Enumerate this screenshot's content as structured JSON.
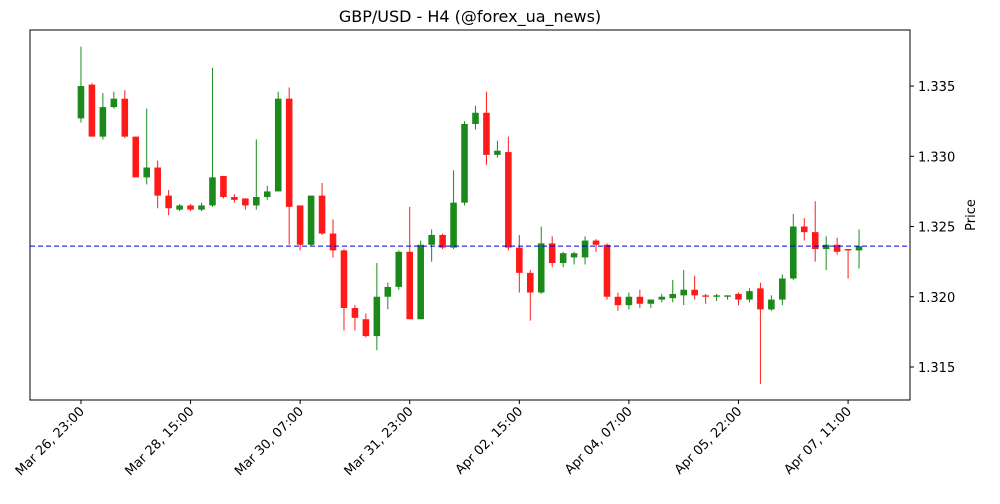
{
  "chart_data": {
    "type": "candlestick",
    "title": "GBP/USD - H4 (@forex_ua_news)",
    "y_label": "Price",
    "open": [
      1.3327,
      1.3351,
      1.3314,
      1.3335,
      1.3341,
      1.3314,
      1.3285,
      1.3292,
      1.3272,
      1.3262,
      1.3265,
      1.3262,
      1.3265,
      1.3286,
      1.3271,
      1.327,
      1.3265,
      1.3271,
      1.3275,
      1.3341,
      1.3265,
      1.3237,
      1.3272,
      1.3245,
      1.3233,
      1.3192,
      1.3184,
      1.3172,
      1.32,
      1.3207,
      1.3232,
      1.3184,
      1.3237,
      1.3244,
      1.3235,
      1.3267,
      1.3323,
      1.3331,
      1.3301,
      1.3303,
      1.3235,
      1.3217,
      1.3203,
      1.3238,
      1.3224,
      1.3228,
      1.3228,
      1.324,
      1.3237,
      1.32,
      1.3194,
      1.32,
      1.3195,
      1.3198,
      1.3199,
      1.3201,
      1.3205,
      1.3201,
      1.32,
      1.32,
      1.3202,
      1.3198,
      1.3206,
      1.3191,
      1.3198,
      1.3213,
      1.325,
      1.3246,
      1.3234,
      1.3237,
      1.3234,
      1.3233
    ],
    "high": [
      1.3378,
      1.3352,
      1.3345,
      1.3346,
      1.3347,
      1.3314,
      1.3334,
      1.3297,
      1.3276,
      1.3266,
      1.3266,
      1.3267,
      1.3363,
      1.3286,
      1.3273,
      1.327,
      1.3312,
      1.3279,
      1.3346,
      1.3349,
      1.3265,
      1.3272,
      1.3281,
      1.3255,
      1.3234,
      1.3194,
      1.3188,
      1.3224,
      1.321,
      1.3233,
      1.3264,
      1.324,
      1.3248,
      1.3245,
      1.329,
      1.3325,
      1.3336,
      1.3346,
      1.3311,
      1.3314,
      1.3244,
      1.3219,
      1.325,
      1.3243,
      1.3232,
      1.3232,
      1.3243,
      1.3241,
      1.3238,
      1.3203,
      1.3203,
      1.3205,
      1.3198,
      1.3202,
      1.3212,
      1.3219,
      1.3215,
      1.3202,
      1.3202,
      1.3201,
      1.3203,
      1.3206,
      1.321,
      1.3201,
      1.3216,
      1.3259,
      1.3256,
      1.3268,
      1.3243,
      1.3242,
      1.3234,
      1.3248
    ],
    "low": [
      1.3324,
      1.3314,
      1.3312,
      1.3334,
      1.3313,
      1.3285,
      1.328,
      1.3263,
      1.3258,
      1.3261,
      1.3261,
      1.3261,
      1.3264,
      1.327,
      1.3267,
      1.3262,
      1.3262,
      1.3269,
      1.3275,
      1.3237,
      1.3233,
      1.3236,
      1.3244,
      1.3228,
      1.3176,
      1.3176,
      1.3171,
      1.3162,
      1.3191,
      1.3205,
      1.3184,
      1.3184,
      1.3225,
      1.3234,
      1.3234,
      1.3265,
      1.3319,
      1.3294,
      1.3299,
      1.3233,
      1.3203,
      1.3183,
      1.3202,
      1.3221,
      1.3221,
      1.3223,
      1.3223,
      1.3232,
      1.3198,
      1.319,
      1.3191,
      1.3192,
      1.3192,
      1.3196,
      1.3196,
      1.3194,
      1.3198,
      1.3195,
      1.3197,
      1.3198,
      1.3194,
      1.3196,
      1.3138,
      1.319,
      1.3194,
      1.3212,
      1.324,
      1.3225,
      1.3219,
      1.323,
      1.3213,
      1.322
    ],
    "close": [
      1.335,
      1.3314,
      1.3335,
      1.3341,
      1.3314,
      1.3285,
      1.3292,
      1.3272,
      1.3263,
      1.3265,
      1.3262,
      1.3265,
      1.3285,
      1.3271,
      1.3269,
      1.3265,
      1.3271,
      1.3275,
      1.3341,
      1.3264,
      1.3237,
      1.3272,
      1.3245,
      1.3233,
      1.3192,
      1.3185,
      1.3172,
      1.32,
      1.3207,
      1.3232,
      1.3184,
      1.3237,
      1.3244,
      1.3235,
      1.3267,
      1.3323,
      1.3331,
      1.3301,
      1.3304,
      1.3235,
      1.3217,
      1.3203,
      1.3238,
      1.3224,
      1.3231,
      1.3231,
      1.324,
      1.3237,
      1.32,
      1.3194,
      1.32,
      1.3195,
      1.3198,
      1.32,
      1.3202,
      1.3205,
      1.3201,
      1.32,
      1.3201,
      1.3201,
      1.3198,
      1.3204,
      1.3191,
      1.3198,
      1.3213,
      1.325,
      1.3246,
      1.3234,
      1.3237,
      1.3232,
      1.3233,
      1.3236
    ],
    "up_color": "#1b8a1b",
    "down_color": "#ff1a1a",
    "hline": 1.3236,
    "hline_color": "#0000dd",
    "xlim": [
      -4.65,
      75.65
    ],
    "xticks": [
      {
        "value": 0,
        "label": "Mar 26, 23:00"
      },
      {
        "value": 10,
        "label": "Mar 28, 15:00"
      },
      {
        "value": 20,
        "label": "Mar 30, 07:00"
      },
      {
        "value": 30,
        "label": "Mar 31, 23:00"
      },
      {
        "value": 40,
        "label": "Apr 02, 15:00"
      },
      {
        "value": 50,
        "label": "Apr 04, 07:00"
      },
      {
        "value": 60,
        "label": "Apr 05, 22:00"
      },
      {
        "value": 70,
        "label": "Apr 07, 11:00"
      }
    ],
    "ylim": [
      1.31265,
      1.33899
    ],
    "yticks": [
      1.315,
      {
        "value": 1.32,
        "label": "1.320"
      },
      1.325,
      {
        "value": 1.33,
        "label": "1.330"
      },
      1.335
    ]
  }
}
